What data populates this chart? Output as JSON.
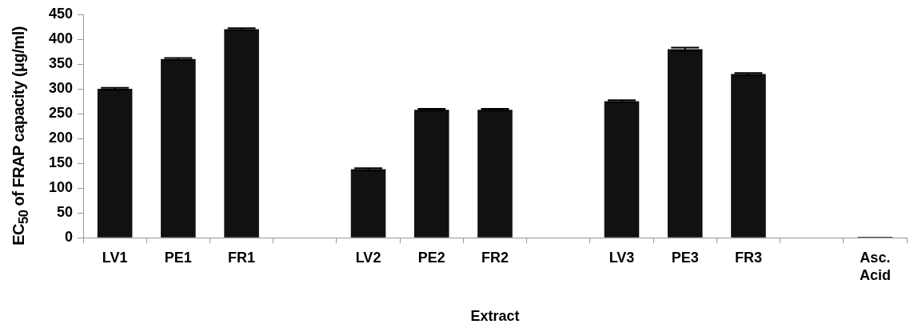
{
  "chart_data": {
    "type": "bar",
    "xlabel": "Extract",
    "ylabel": "EC$_{50}$ of FRAP capacity (μg/ml)",
    "categories": [
      "LV1",
      "PE1",
      "FR1",
      null,
      "LV2",
      "PE2",
      "FR2",
      null,
      "LV3",
      "PE3",
      "FR3",
      null,
      "Asc. Acid"
    ],
    "values": [
      300,
      360,
      420,
      null,
      138,
      258,
      258,
      null,
      275,
      380,
      330,
      null,
      2
    ],
    "errors": [
      2,
      2,
      2,
      null,
      2,
      2,
      2,
      null,
      2,
      3,
      2,
      null,
      null
    ],
    "color": "#111111",
    "ylim": [
      0,
      450
    ],
    "yticks": [
      0,
      50,
      100,
      150,
      200,
      250,
      300,
      350,
      400,
      450
    ],
    "grid": false,
    "legend": false
  }
}
